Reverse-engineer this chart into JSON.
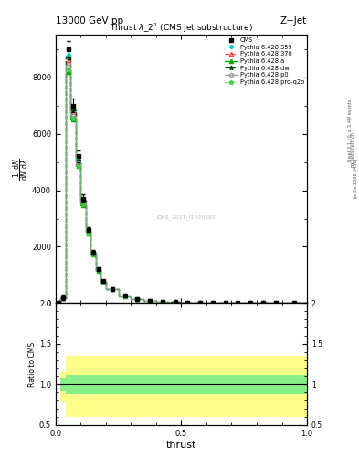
{
  "title_top": "13000 GeV pp",
  "title_right": "Z+Jet",
  "plot_title": "Thrust $\\lambda\\_2^1$ (CMS jet substructure)",
  "xlabel": "thrust",
  "ylabel_ratio": "Ratio to CMS",
  "watermark": "CMS_2021_I1920187",
  "right_label_top": "Rivet 3.1.10, ≥ 2.4M events",
  "right_label_bot": "[arXiv:1306.3436]",
  "right_label_url": "mcplots.cern.ch",
  "thrust_bins": [
    0.0,
    0.02,
    0.04,
    0.06,
    0.08,
    0.1,
    0.12,
    0.14,
    0.16,
    0.18,
    0.2,
    0.25,
    0.3,
    0.35,
    0.4,
    0.45,
    0.5,
    0.55,
    0.6,
    0.65,
    0.7,
    0.75,
    0.8,
    0.85,
    0.9,
    1.0
  ],
  "cms_values": [
    0,
    200,
    9000,
    7000,
    5200,
    3700,
    2600,
    1800,
    1200,
    780,
    500,
    260,
    140,
    80,
    45,
    28,
    18,
    12,
    8,
    5,
    4,
    3,
    2,
    2,
    2
  ],
  "cms_errors": [
    0,
    100,
    300,
    250,
    200,
    150,
    100,
    80,
    60,
    40,
    25,
    15,
    10,
    7,
    5,
    4,
    3,
    2,
    2,
    1,
    1,
    1,
    1,
    1,
    1
  ],
  "py359_values": [
    0,
    180,
    8800,
    6900,
    5100,
    3650,
    2580,
    1790,
    1190,
    775,
    497,
    258,
    139,
    79,
    44,
    27,
    17,
    11,
    8,
    5,
    4,
    3,
    2,
    2,
    2
  ],
  "py370_values": [
    0,
    170,
    8600,
    6750,
    5000,
    3580,
    2530,
    1750,
    1165,
    758,
    486,
    252,
    136,
    77,
    43,
    26,
    17,
    11,
    7,
    5,
    3,
    3,
    2,
    2,
    2
  ],
  "pya_values": [
    0,
    160,
    8200,
    6500,
    4850,
    3480,
    2470,
    1720,
    1150,
    752,
    483,
    250,
    135,
    77,
    43,
    26,
    17,
    11,
    7,
    5,
    3,
    3,
    2,
    2,
    2
  ],
  "pydw_values": [
    0,
    175,
    8700,
    6820,
    5060,
    3620,
    2560,
    1770,
    1180,
    768,
    492,
    255,
    138,
    78,
    44,
    27,
    17,
    11,
    8,
    5,
    4,
    3,
    2,
    2,
    2
  ],
  "pyp0_values": [
    0,
    165,
    8450,
    6650,
    4950,
    3550,
    2510,
    1740,
    1160,
    756,
    485,
    252,
    136,
    77,
    43,
    26,
    17,
    11,
    7,
    5,
    3,
    3,
    2,
    2,
    2
  ],
  "pyproq2o_values": [
    0,
    162,
    8300,
    6550,
    4870,
    3490,
    2480,
    1725,
    1152,
    753,
    483,
    250,
    135,
    77,
    43,
    26,
    17,
    11,
    7,
    5,
    3,
    3,
    2,
    2,
    2
  ],
  "color_py359": "#00CCCC",
  "color_py370": "#FF4444",
  "color_pya": "#00AA00",
  "color_pydw": "#004400",
  "color_pyp0": "#999999",
  "color_pyproq2o": "#44CC44",
  "ylim_main": [
    0,
    9500
  ],
  "ylim_ratio": [
    0.5,
    2.0
  ],
  "xlim": [
    0.0,
    1.0
  ],
  "bg_color": "#ffffff",
  "ratio_yellow_bins": [
    0.0,
    0.02,
    0.04,
    0.06,
    1.0
  ],
  "ratio_yellow_lo": [
    1.0,
    0.78,
    0.6,
    0.6,
    0.6
  ],
  "ratio_yellow_hi": [
    1.0,
    1.15,
    1.35,
    1.35,
    1.35
  ],
  "ratio_green_lo": [
    1.0,
    0.92,
    0.88,
    0.88,
    0.88
  ],
  "ratio_green_hi": [
    1.0,
    1.08,
    1.12,
    1.12,
    1.12
  ]
}
